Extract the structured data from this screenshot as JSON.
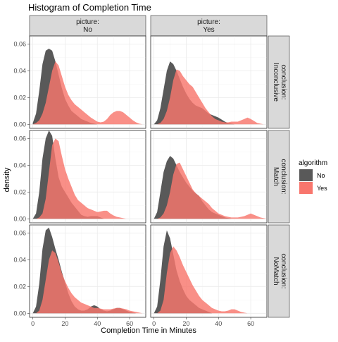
{
  "chart_data": {
    "type": "area",
    "title": "Histogram of Completion Time",
    "xlabel": "Completion Time in Minutes",
    "ylabel": "density",
    "xlim": [
      -2,
      70
    ],
    "ylim": [
      -0.003,
      0.066
    ],
    "x_ticks": [
      "0",
      "20",
      "40",
      "60"
    ],
    "x_tick_values": [
      0,
      20,
      40,
      60
    ],
    "y_ticks": [
      "0.00",
      "0.02",
      "0.04",
      "0.06"
    ],
    "y_tick_values": [
      0,
      0.02,
      0.04,
      0.06
    ],
    "col_facet_labels": [
      "picture:\nNo",
      "picture:\nYes"
    ],
    "row_facet_labels": [
      "conclusion:\nInconclusive",
      "conclusion:\nMatch",
      "conclusion:\nNoMatch"
    ],
    "legend": {
      "title": "algorithm",
      "position": "right",
      "entries": [
        {
          "label": "No",
          "color": "#595959"
        },
        {
          "label": "Yes",
          "color": "#f8766d"
        }
      ]
    },
    "x_grid": [
      0,
      2,
      4,
      6,
      8,
      10,
      12,
      14,
      16,
      18,
      20,
      22,
      24,
      26,
      28,
      30,
      32,
      34,
      36,
      38,
      40,
      42,
      44,
      46,
      48,
      50,
      52,
      54,
      56,
      58,
      60,
      62,
      64,
      66,
      68,
      70
    ],
    "panels": [
      {
        "row": "Inconclusive",
        "col": "No",
        "series": [
          {
            "name": "No",
            "values": [
              0.001,
              0.008,
              0.025,
              0.045,
              0.055,
              0.0565,
              0.055,
              0.047,
              0.037,
              0.027,
              0.019,
              0.014,
              0.01,
              0.008,
              0.006,
              0.004,
              0.003,
              0.002,
              0.001,
              0.0005,
              0,
              0,
              0,
              0,
              0,
              0,
              0,
              0,
              0,
              0,
              0,
              0,
              0,
              0,
              0,
              0
            ]
          },
          {
            "name": "Yes",
            "values": [
              0,
              0.001,
              0.003,
              0.008,
              0.016,
              0.028,
              0.04,
              0.047,
              0.044,
              0.036,
              0.028,
              0.022,
              0.018,
              0.015,
              0.013,
              0.011,
              0.009,
              0.007,
              0.005,
              0.0035,
              0.002,
              0.0015,
              0.002,
              0.004,
              0.007,
              0.009,
              0.01,
              0.01,
              0.009,
              0.007,
              0.005,
              0.003,
              0.0015,
              0.0005,
              0,
              0
            ]
          }
        ]
      },
      {
        "row": "Inconclusive",
        "col": "Yes",
        "series": [
          {
            "name": "No",
            "values": [
              0,
              0.003,
              0.012,
              0.026,
              0.04,
              0.047,
              0.045,
              0.04,
              0.034,
              0.028,
              0.023,
              0.019,
              0.016,
              0.014,
              0.013,
              0.012,
              0.01,
              0.008,
              0.007,
              0.006,
              0.005,
              0.0035,
              0.002,
              0.001,
              0.0005,
              0,
              0,
              0,
              0,
              0,
              0,
              0,
              0,
              0,
              0,
              0
            ]
          },
          {
            "name": "Yes",
            "values": [
              0,
              0,
              0.001,
              0.004,
              0.01,
              0.02,
              0.033,
              0.041,
              0.04,
              0.036,
              0.033,
              0.03,
              0.028,
              0.024,
              0.02,
              0.016,
              0.012,
              0.009,
              0.006,
              0.004,
              0.003,
              0.002,
              0.0015,
              0.0015,
              0.002,
              0.002,
              0.002,
              0.003,
              0.004,
              0.005,
              0.004,
              0.0025,
              0.001,
              0.0005,
              0,
              0
            ]
          }
        ]
      },
      {
        "row": "Match",
        "col": "No",
        "series": [
          {
            "name": "No",
            "values": [
              0,
              0.004,
              0.02,
              0.045,
              0.06,
              0.066,
              0.062,
              0.045,
              0.031,
              0.024,
              0.02,
              0.016,
              0.012,
              0.009,
              0.006,
              0.003,
              0.002,
              0.0015,
              0.002,
              0.002,
              0.002,
              0.001,
              0,
              0,
              0,
              0,
              0,
              0,
              0,
              0,
              0,
              0,
              0,
              0,
              0,
              0
            ]
          },
          {
            "name": "Yes",
            "values": [
              0,
              0,
              0.001,
              0.004,
              0.015,
              0.035,
              0.055,
              0.06,
              0.058,
              0.047,
              0.037,
              0.03,
              0.024,
              0.018,
              0.014,
              0.012,
              0.01,
              0.008,
              0.007,
              0.006,
              0.005,
              0.0055,
              0.006,
              0.006,
              0.004,
              0.0025,
              0.0015,
              0.001,
              0.0005,
              0,
              0,
              0,
              0,
              0,
              0,
              0
            ]
          }
        ]
      },
      {
        "row": "Match",
        "col": "Yes",
        "series": [
          {
            "name": "No",
            "values": [
              0,
              0.005,
              0.02,
              0.035,
              0.043,
              0.047,
              0.045,
              0.04,
              0.035,
              0.031,
              0.027,
              0.024,
              0.021,
              0.019,
              0.017,
              0.013,
              0.01,
              0.007,
              0.005,
              0.004,
              0.003,
              0.002,
              0.001,
              0.0005,
              0,
              0,
              0,
              0,
              0,
              0,
              0,
              0,
              0,
              0,
              0,
              0
            ]
          },
          {
            "name": "Yes",
            "values": [
              0,
              0,
              0.001,
              0.004,
              0.01,
              0.02,
              0.033,
              0.041,
              0.042,
              0.037,
              0.032,
              0.027,
              0.022,
              0.019,
              0.017,
              0.015,
              0.013,
              0.011,
              0.008,
              0.006,
              0.004,
              0.003,
              0.002,
              0.0015,
              0.001,
              0.001,
              0.001,
              0.0015,
              0.002,
              0.003,
              0.004,
              0.003,
              0.002,
              0.001,
              0.0005,
              0
            ]
          }
        ]
      },
      {
        "row": "NoMatch",
        "col": "No",
        "series": [
          {
            "name": "No",
            "values": [
              0,
              0.005,
              0.022,
              0.048,
              0.062,
              0.064,
              0.057,
              0.048,
              0.04,
              0.031,
              0.023,
              0.015,
              0.009,
              0.005,
              0.003,
              0.002,
              0.002,
              0.003,
              0.005,
              0.006,
              0.005,
              0.003,
              0.002,
              0.0015,
              0.002,
              0.003,
              0.004,
              0.004,
              0.003,
              0.002,
              0.001,
              0.0005,
              0,
              0,
              0,
              0
            ]
          },
          {
            "name": "Yes",
            "values": [
              0,
              0,
              0.002,
              0.01,
              0.025,
              0.04,
              0.047,
              0.045,
              0.038,
              0.03,
              0.024,
              0.019,
              0.015,
              0.012,
              0.01,
              0.008,
              0.007,
              0.006,
              0.005,
              0.004,
              0.004,
              0.0035,
              0.003,
              0.003,
              0.003,
              0.0035,
              0.004,
              0.004,
              0.0035,
              0.003,
              0.002,
              0.0015,
              0.001,
              0.0005,
              0,
              0
            ]
          }
        ]
      },
      {
        "row": "NoMatch",
        "col": "Yes",
        "series": [
          {
            "name": "No",
            "values": [
              0,
              0.005,
              0.025,
              0.05,
              0.062,
              0.056,
              0.044,
              0.032,
              0.024,
              0.018,
              0.013,
              0.01,
              0.008,
              0.006,
              0.004,
              0.003,
              0.002,
              0.001,
              0,
              0,
              0,
              0,
              0,
              0,
              0,
              0,
              0,
              0,
              0,
              0,
              0,
              0,
              0,
              0,
              0,
              0
            ]
          },
          {
            "name": "Yes",
            "values": [
              0,
              0,
              0.002,
              0.01,
              0.03,
              0.045,
              0.05,
              0.047,
              0.042,
              0.036,
              0.031,
              0.026,
              0.021,
              0.017,
              0.013,
              0.01,
              0.008,
              0.006,
              0.004,
              0.003,
              0.002,
              0.0015,
              0.0015,
              0.002,
              0.003,
              0.003,
              0.002,
              0.001,
              0.0005,
              0,
              0,
              0,
              0,
              0,
              0,
              0
            ]
          }
        ]
      }
    ]
  }
}
